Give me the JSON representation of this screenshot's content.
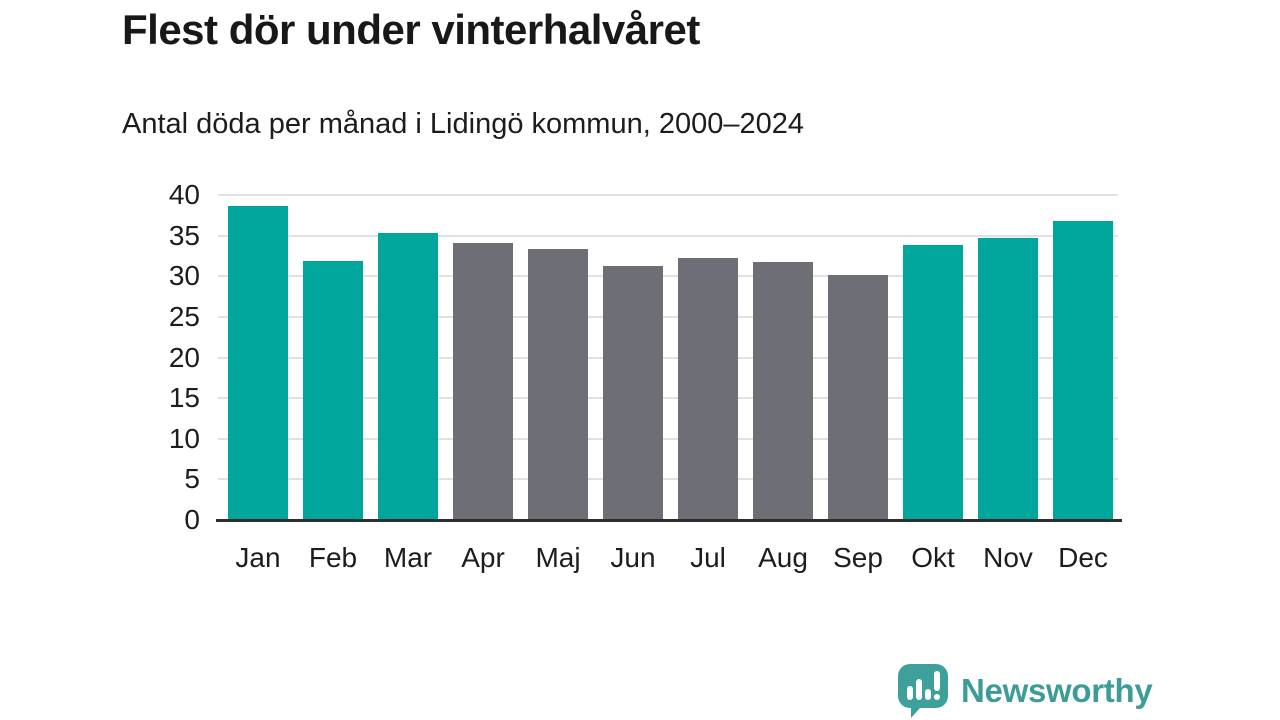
{
  "header": {
    "title": "Flest dör under vinterhalvåret",
    "subtitle": "Antal döda per månad i Lidingö kommun, 2000–2024"
  },
  "chart_data": {
    "type": "bar",
    "title": "Flest dör under vinterhalvåret",
    "subtitle": "Antal döda per månad i Lidingö kommun, 2000–2024",
    "categories": [
      "Jan",
      "Feb",
      "Mar",
      "Apr",
      "Maj",
      "Jun",
      "Jul",
      "Aug",
      "Sep",
      "Okt",
      "Nov",
      "Dec"
    ],
    "values": [
      38.7,
      31.9,
      35.3,
      34.1,
      33.4,
      31.3,
      32.2,
      31.7,
      30.1,
      33.8,
      34.7,
      36.8
    ],
    "xlabel": "",
    "ylabel": "",
    "ylim": [
      0,
      40
    ],
    "yticks": [
      0,
      5,
      10,
      15,
      20,
      25,
      30,
      35,
      40
    ],
    "grid": true,
    "legend": false,
    "highlighted_categories": [
      "Jan",
      "Feb",
      "Mar",
      "Okt",
      "Nov",
      "Dec"
    ],
    "colors": {
      "highlight": "#00a69b",
      "default": "#6e6e76",
      "gridline": "#e1e1e1",
      "axis": "#2d2d2d",
      "text": "#1d1d1d"
    }
  },
  "branding": {
    "logo_text": "Newsworthy",
    "logo_color": "#3e9c98",
    "logo_icon": "bar-chart-speech-bubble"
  }
}
